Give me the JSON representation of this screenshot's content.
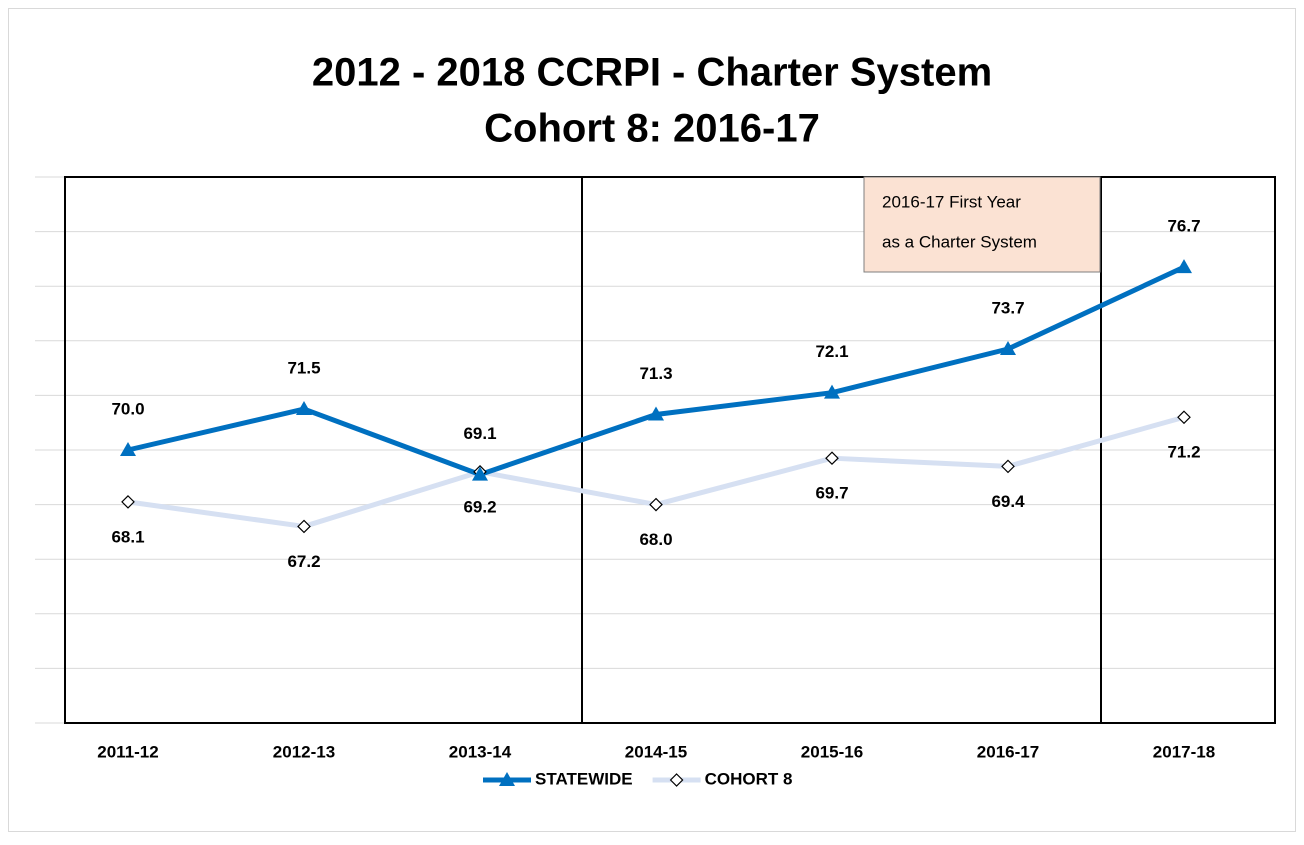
{
  "chart_data": {
    "type": "line",
    "title": [
      "2012 - 2018 CCRPI - Charter System",
      "Cohort 8: 2016-17"
    ],
    "annotation": [
      "2016-17 First Year",
      "as a Charter System"
    ],
    "categories": [
      "2011-12",
      "2012-13",
      "2013-14",
      "2014-15",
      "2015-16",
      "2016-17",
      "2017-18"
    ],
    "series": [
      {
        "name": "STATEWIDE",
        "color": "#0070c0",
        "marker": "triangle",
        "label_position": "above",
        "values": [
          70.0,
          71.5,
          69.1,
          71.3,
          72.1,
          73.7,
          76.7
        ],
        "value_labels": [
          "70.0",
          "71.5",
          "69.1",
          "71.3",
          "72.1",
          "73.7",
          "76.7"
        ]
      },
      {
        "name": "COHORT 8",
        "color": "#d6e0f2",
        "marker": "diamond",
        "label_position": "below",
        "values": [
          68.1,
          67.2,
          69.2,
          68.0,
          69.7,
          69.4,
          71.2
        ],
        "value_labels": [
          "68.1",
          "67.2",
          "69.2",
          "68.0",
          "69.7",
          "69.4",
          "71.2"
        ]
      }
    ],
    "ylim": [
      60,
      80
    ],
    "yticks": [
      60,
      62,
      64,
      66,
      68,
      70,
      72,
      74,
      76,
      78,
      80
    ],
    "grid": true,
    "legend": "bottom"
  }
}
